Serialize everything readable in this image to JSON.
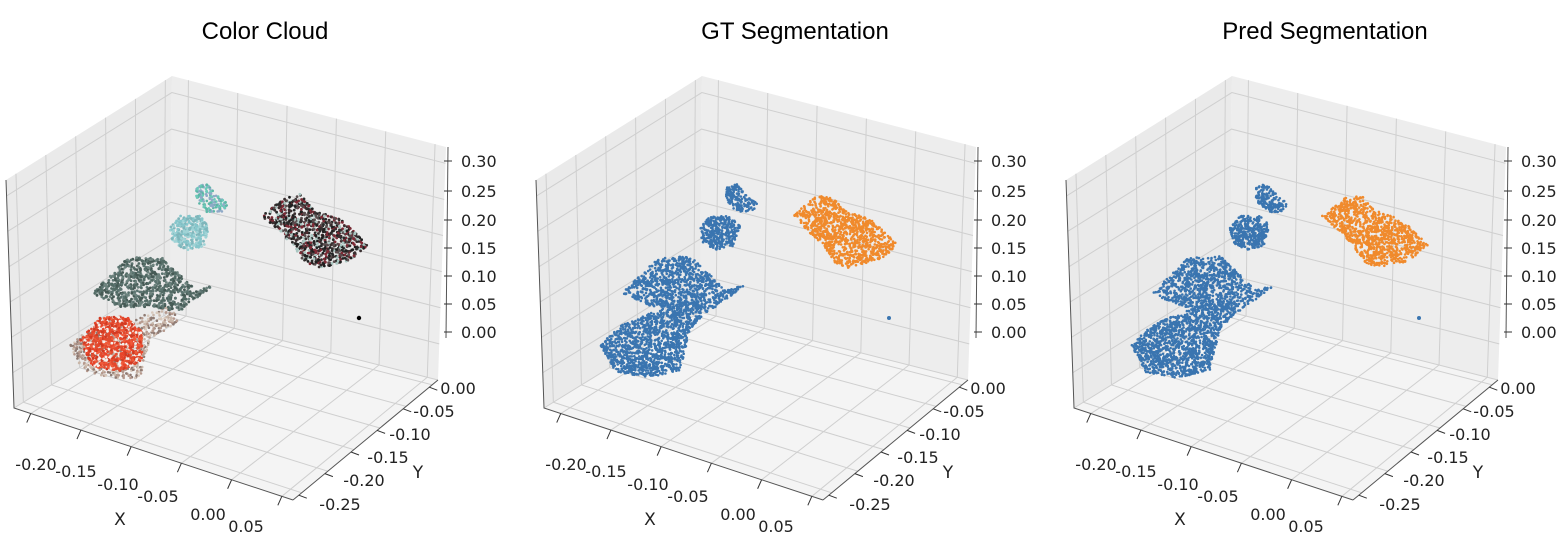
{
  "panels": [
    {
      "title": "Color Cloud"
    },
    {
      "title": "GT Segmentation"
    },
    {
      "title": "Pred Segmentation"
    }
  ],
  "colors": {
    "segment_blue": "#3a75b0",
    "segment_orange": "#f08a2c",
    "pane": "#f0f0f0",
    "grid": "#cfcfcf"
  },
  "chart_data": [
    {
      "type": "scatter",
      "title": "Color Cloud",
      "projection": "3d",
      "xlabel": "X",
      "ylabel": "Y",
      "zlabel": "",
      "xticks": [
        "-0.20",
        "-0.15",
        "-0.10",
        "-0.05",
        "0.00",
        "0.05"
      ],
      "yticks": [
        "0.00",
        "-0.05",
        "-0.10",
        "-0.15",
        "-0.20",
        "-0.25"
      ],
      "zticks": [
        "0.00",
        "0.05",
        "0.10",
        "0.15",
        "0.20",
        "0.25",
        "0.30"
      ],
      "xlim": [
        -0.23,
        0.07
      ],
      "ylim": [
        -0.28,
        0.02
      ],
      "zlim": [
        0.0,
        0.3
      ],
      "grid": true,
      "coloring": "rgb point colors",
      "objects": [
        {
          "name": "red-object",
          "colors": [
            "#e8452a",
            "#f5f0ec"
          ]
        },
        {
          "name": "gray-green-plate",
          "colors": [
            "#526a64"
          ]
        },
        {
          "name": "light-blue-disc",
          "colors": [
            "#86c6cb"
          ]
        },
        {
          "name": "teal-cluster",
          "colors": [
            "#6ccab9"
          ]
        },
        {
          "name": "dark-plate",
          "colors": [
            "#3a2f30",
            "#7d2a35",
            "#aac7c2"
          ]
        },
        {
          "name": "black-point",
          "colors": [
            "#000000"
          ]
        }
      ]
    },
    {
      "type": "scatter",
      "title": "GT Segmentation",
      "projection": "3d",
      "xlabel": "X",
      "ylabel": "Y",
      "zlabel": "",
      "xticks": [
        "-0.20",
        "-0.15",
        "-0.10",
        "-0.05",
        "0.00",
        "0.05"
      ],
      "yticks": [
        "0.00",
        "-0.05",
        "-0.10",
        "-0.15",
        "-0.20",
        "-0.25"
      ],
      "zticks": [
        "0.00",
        "0.05",
        "0.10",
        "0.15",
        "0.20",
        "0.25",
        "0.30"
      ],
      "xlim": [
        -0.23,
        0.07
      ],
      "ylim": [
        -0.28,
        0.02
      ],
      "zlim": [
        0.0,
        0.3
      ],
      "grid": true,
      "series": [
        {
          "color": "#3a75b0"
        },
        {
          "color": "#f08a2c"
        }
      ]
    },
    {
      "type": "scatter",
      "title": "Pred Segmentation",
      "projection": "3d",
      "xlabel": "X",
      "ylabel": "Y",
      "zlabel": "",
      "xticks": [
        "-0.20",
        "-0.15",
        "-0.10",
        "-0.05",
        "0.00",
        "0.05"
      ],
      "yticks": [
        "0.00",
        "-0.05",
        "-0.10",
        "-0.15",
        "-0.20",
        "-0.25"
      ],
      "zticks": [
        "0.00",
        "0.05",
        "0.10",
        "0.15",
        "0.20",
        "0.25",
        "0.30"
      ],
      "xlim": [
        -0.23,
        0.07
      ],
      "ylim": [
        -0.28,
        0.02
      ],
      "zlim": [
        0.0,
        0.3
      ],
      "grid": true,
      "series": [
        {
          "color": "#3a75b0"
        },
        {
          "color": "#f08a2c"
        }
      ]
    }
  ]
}
